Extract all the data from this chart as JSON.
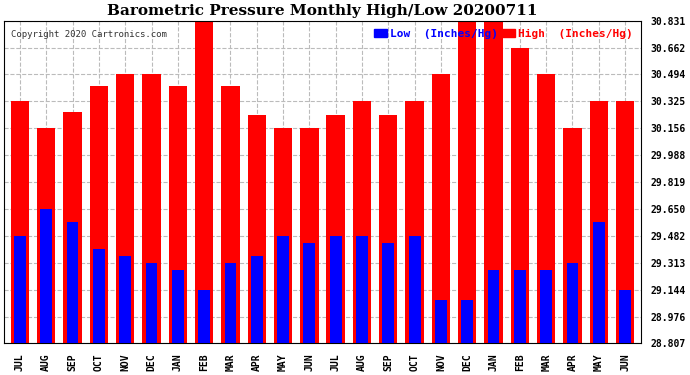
{
  "title": "Barometric Pressure Monthly High/Low 20200711",
  "copyright": "Copyright 2020 Cartronics.com",
  "legend_low": "Low  (Inches/Hg)",
  "legend_high": "High  (Inches/Hg)",
  "months": [
    "JUL",
    "AUG",
    "SEP",
    "OCT",
    "NOV",
    "DEC",
    "JAN",
    "FEB",
    "MAR",
    "APR",
    "MAY",
    "JUN",
    "JUL",
    "AUG",
    "SEP",
    "OCT",
    "NOV",
    "DEC",
    "JAN",
    "FEB",
    "MAR",
    "APR",
    "MAY",
    "JUN"
  ],
  "high_values": [
    30.325,
    30.156,
    30.26,
    30.419,
    30.494,
    30.494,
    30.419,
    30.831,
    30.419,
    30.24,
    30.156,
    30.156,
    30.24,
    30.325,
    30.24,
    30.325,
    30.494,
    30.831,
    30.831,
    30.662,
    30.494,
    30.156,
    30.325,
    30.325
  ],
  "low_values": [
    29.482,
    29.65,
    29.566,
    29.4,
    29.355,
    29.313,
    29.27,
    29.144,
    29.313,
    29.355,
    29.482,
    29.44,
    29.482,
    29.482,
    29.44,
    29.482,
    29.082,
    29.082,
    29.27,
    29.27,
    29.27,
    29.313,
    29.566,
    29.144
  ],
  "ymin": 28.807,
  "ymax": 30.831,
  "yticks": [
    28.807,
    28.976,
    29.144,
    29.313,
    29.482,
    29.65,
    29.819,
    29.988,
    30.156,
    30.325,
    30.494,
    30.662,
    30.831
  ],
  "red_bar_width": 0.7,
  "blue_bar_width": 0.45,
  "high_color": "#FF0000",
  "low_color": "#0000FF",
  "bg_color": "#FFFFFF",
  "grid_color": "#BBBBBB",
  "title_fontsize": 11,
  "tick_fontsize": 7,
  "label_fontsize": 8,
  "copyright_fontsize": 6.5
}
